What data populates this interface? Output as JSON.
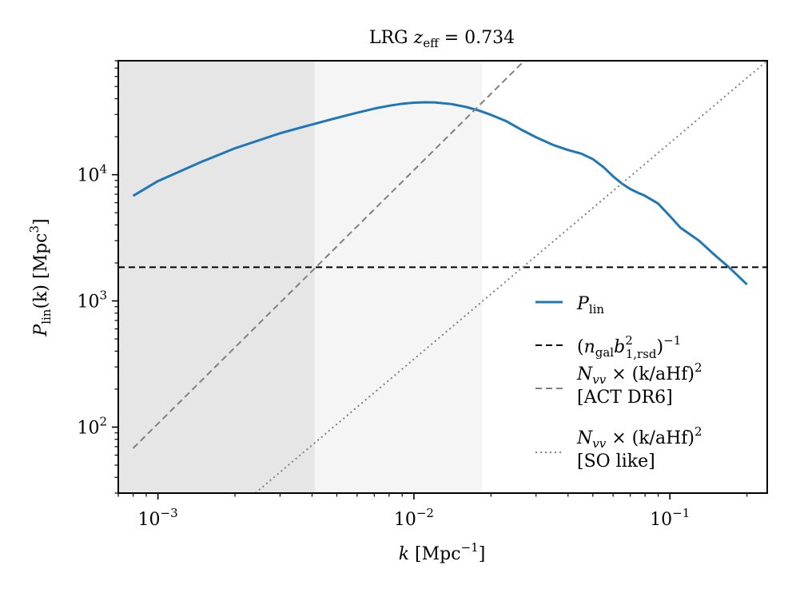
{
  "chart_data": {
    "type": "line",
    "title": "LRG z_eff = 0.734",
    "title_parts": {
      "prefix": "LRG ",
      "var": "z",
      "sub": "eff",
      "suffix": " = 0.734"
    },
    "xlabel": "k [Mpc^-1]",
    "xlabel_parts": {
      "var": "k",
      "unit": " [Mpc",
      "sup": "−1",
      "close": "]"
    },
    "ylabel": "P_lin(k) [Mpc^3]",
    "ylabel_parts": {
      "var": "P",
      "sub": "lin",
      "arg": "(k)",
      "unit": " [Mpc",
      "sup": "3",
      "close": "]"
    },
    "xscale": "log",
    "yscale": "log",
    "xlim": [
      0.0007,
      0.24
    ],
    "ylim": [
      30,
      80000
    ],
    "x_ticks": [
      {
        "value": 0.001,
        "base": "10",
        "exp": "−3"
      },
      {
        "value": 0.01,
        "base": "10",
        "exp": "−2"
      },
      {
        "value": 0.1,
        "base": "10",
        "exp": "−1"
      }
    ],
    "y_ticks": [
      {
        "value": 100,
        "base": "10",
        "exp": "2"
      },
      {
        "value": 1000,
        "base": "10",
        "exp": "3"
      },
      {
        "value": 10000,
        "base": "10",
        "exp": "4"
      }
    ],
    "shaded_regions": [
      {
        "x": [
          0.0007,
          0.0041
        ],
        "color": "#e6e6e6"
      },
      {
        "x": [
          0.0041,
          0.0185
        ],
        "color": "#f5f5f5"
      }
    ],
    "series": [
      {
        "name": "P_lin",
        "legend": {
          "var": "P",
          "sub": "lin"
        },
        "color": "#1f77b4",
        "style": "solid",
        "x": [
          0.0008,
          0.001,
          0.0015,
          0.002,
          0.003,
          0.004,
          0.005,
          0.006,
          0.007,
          0.008,
          0.009,
          0.01,
          0.011,
          0.012,
          0.014,
          0.016,
          0.018,
          0.02,
          0.023,
          0.026,
          0.03,
          0.035,
          0.04,
          0.045,
          0.05,
          0.055,
          0.06,
          0.065,
          0.07,
          0.075,
          0.08,
          0.09,
          0.1,
          0.11,
          0.13,
          0.15,
          0.17,
          0.2
        ],
        "y": [
          6800,
          8900,
          12800,
          16200,
          21300,
          25000,
          28200,
          31000,
          33400,
          35200,
          36500,
          37200,
          37500,
          37400,
          36300,
          34400,
          32200,
          29800,
          26500,
          23000,
          19800,
          17200,
          15700,
          14700,
          13300,
          11500,
          9700,
          8500,
          7700,
          7200,
          6800,
          5900,
          4700,
          3800,
          3000,
          2300,
          1850,
          1350
        ]
      },
      {
        "name": "(n_gal b^2_1,rsd)^-1",
        "legend": {
          "open": "(",
          "var": "n",
          "sub": "gal",
          "var2": "b",
          "sup2": "2",
          "sub2": "1,rsd",
          "close": ")",
          "sup": "−1"
        },
        "color": "#000000",
        "style": "dashed",
        "constant": 1850
      },
      {
        "name": "N_vv x (k/aHf)^2 [ACT DR6]",
        "legend": {
          "line1_var": "N",
          "line1_sub": "vv",
          "line1_rest": " × (k/aHf)",
          "line1_sup": "2",
          "line2": "[ACT DR6]"
        },
        "color": "#808080",
        "style": "dashed",
        "x": [
          0.0008,
          0.027
        ],
        "y": [
          68,
          80000
        ]
      },
      {
        "name": "N_vv x (k/aHf)^2 [SO like]",
        "legend": {
          "line1_var": "N",
          "line1_sub": "vv",
          "line1_rest": " × (k/aHf)",
          "line1_sup": "2",
          "line2": "[SO like]"
        },
        "color": "#808080",
        "style": "dotted",
        "x": [
          0.0024,
          0.24
        ],
        "y": [
          30,
          80000
        ]
      }
    ],
    "legend_position": "lower-right"
  }
}
